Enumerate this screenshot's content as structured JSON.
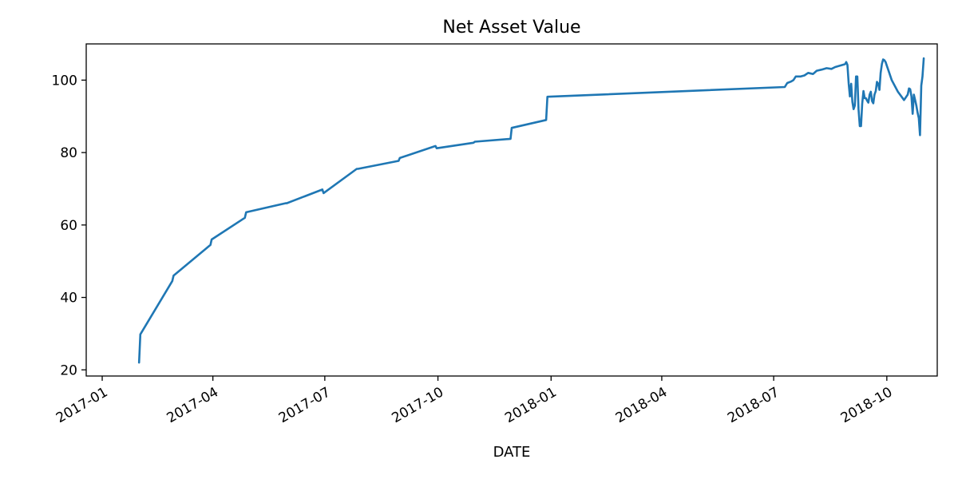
{
  "chart_data": {
    "type": "line",
    "title": "Net Asset Value",
    "xlabel": "DATE",
    "ylabel": "",
    "xlim": [
      "2016-12-19",
      "2018-11-11"
    ],
    "ylim": [
      18.3,
      110
    ],
    "x_ticks": [
      "2017-01",
      "2017-04",
      "2017-07",
      "2017-10",
      "2018-01",
      "2018-04",
      "2018-07",
      "2018-10"
    ],
    "y_ticks": [
      20,
      40,
      60,
      80,
      100
    ],
    "grid": false,
    "colors": {
      "line": "#1f77b4"
    },
    "series": [
      {
        "x": [
          "2017-01-31",
          "2017-02-01",
          "2017-02-27",
          "2017-02-28",
          "2017-03-30",
          "2017-03-31",
          "2017-04-27",
          "2017-04-28",
          "2017-05-30",
          "2017-05-31",
          "2017-06-29",
          "2017-06-30",
          "2017-07-27",
          "2017-07-28",
          "2017-08-30",
          "2017-08-31",
          "2017-09-29",
          "2017-09-30",
          "2017-10-30",
          "2017-10-31",
          "2017-11-29",
          "2017-11-30",
          "2017-12-28",
          "2017-12-29",
          "2018-07-10",
          "2018-07-12",
          "2018-07-15",
          "2018-07-17",
          "2018-07-19",
          "2018-07-23",
          "2018-07-26",
          "2018-07-29",
          "2018-08-02",
          "2018-08-05",
          "2018-08-09",
          "2018-08-13",
          "2018-08-17",
          "2018-08-20",
          "2018-08-25",
          "2018-08-28",
          "2018-08-29",
          "2018-08-30",
          "2018-08-31",
          "2018-09-01",
          "2018-09-02",
          "2018-09-03",
          "2018-09-04",
          "2018-09-05",
          "2018-09-06",
          "2018-09-07",
          "2018-09-08",
          "2018-09-09",
          "2018-09-10",
          "2018-09-11",
          "2018-09-12",
          "2018-09-13",
          "2018-09-14",
          "2018-09-15",
          "2018-09-16",
          "2018-09-17",
          "2018-09-18",
          "2018-09-19",
          "2018-09-20",
          "2018-09-21",
          "2018-09-22",
          "2018-09-23",
          "2018-09-24",
          "2018-09-25",
          "2018-09-26",
          "2018-09-27",
          "2018-09-28",
          "2018-09-29",
          "2018-09-30",
          "2018-10-01",
          "2018-10-02",
          "2018-10-05",
          "2018-10-10",
          "2018-10-15",
          "2018-10-18",
          "2018-10-19",
          "2018-10-20",
          "2018-10-21",
          "2018-10-22",
          "2018-10-23",
          "2018-10-24",
          "2018-10-25",
          "2018-10-26",
          "2018-10-27",
          "2018-10-28",
          "2018-10-29",
          "2018-10-30",
          "2018-10-31"
        ],
        "y": [
          22,
          29.8,
          44.5,
          46,
          54.5,
          56,
          62,
          63.5,
          66,
          66,
          69.8,
          68.8,
          75.5,
          75.5,
          77.7,
          78.5,
          81.8,
          81.2,
          82.7,
          83,
          83.8,
          86.8,
          89,
          95.4,
          98.1,
          99.2,
          99.6,
          100,
          101,
          101,
          101.3,
          102,
          101.7,
          102.6,
          102.9,
          103.3,
          103.1,
          103.6,
          104.1,
          104.4,
          105,
          104.2,
          99,
          95.5,
          99,
          94,
          92,
          93,
          101,
          101,
          92,
          87.3,
          87.3,
          93.5,
          97,
          95,
          95,
          94.3,
          93.8,
          96,
          96.8,
          94.2,
          93.6,
          96,
          97,
          99.5,
          99,
          97.3,
          102,
          104.5,
          105.7,
          105.5,
          105,
          104,
          103,
          100,
          96.8,
          94.5,
          96,
          97.7,
          97.5,
          95.5,
          90.7,
          96,
          94.5,
          93,
          91,
          89.5,
          84.8,
          98.5,
          101,
          106
        ]
      }
    ]
  }
}
